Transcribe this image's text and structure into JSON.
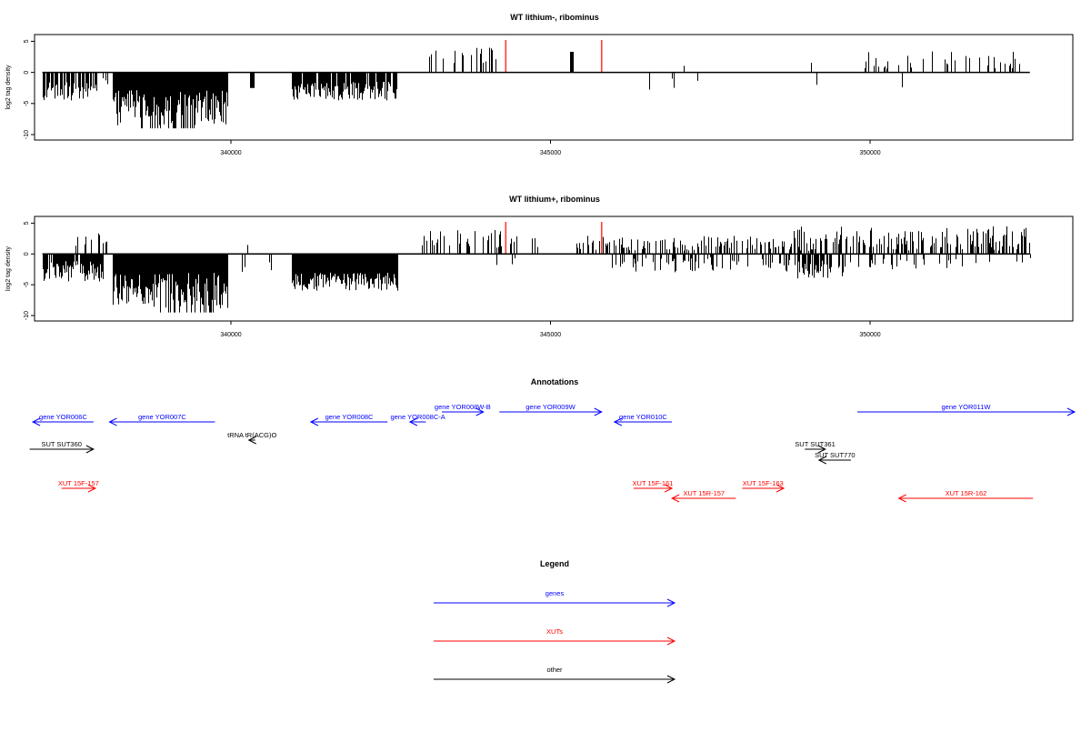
{
  "colors": {
    "genes": "#0000ff",
    "xuts": "#ff0000",
    "other": "#000000",
    "highlight": "#ff3b30",
    "bars": "#000000"
  },
  "axis": {
    "xlim": [
      336800,
      352600
    ],
    "ylim": [
      -10,
      5.5
    ],
    "xticks": [
      340000,
      345000,
      350000
    ],
    "xtick_labels": [
      "340000",
      "345000",
      "350000"
    ],
    "yticks": [
      5,
      0,
      -5,
      -10
    ],
    "ytick_labels": [
      "5",
      "0",
      "-5",
      "-10"
    ],
    "ylabel": "log2 tag density"
  },
  "chart_data": [
    {
      "type": "bar",
      "title": "WT lithium-, ribominus",
      "ylabel": "log2 tag density",
      "xlim": [
        336800,
        352600
      ],
      "ylim": [
        -10,
        5.5
      ],
      "grid": false,
      "highlight_positions": [
        344300,
        345800
      ],
      "highlight_value": 5.2,
      "regions": [
        {
          "from": 337050,
          "to": 337900,
          "density": 0.7,
          "min": -4.5,
          "max": -1.5,
          "sign": -1
        },
        {
          "from": 337900,
          "to": 338100,
          "density": 0.15,
          "min": -2,
          "max": -0.5,
          "sign": -1
        },
        {
          "from": 338150,
          "to": 339950,
          "density": 1.0,
          "min": -8.5,
          "max": -2.5,
          "sign": -1,
          "peak_at": 339000,
          "peak": -9
        },
        {
          "from": 340300,
          "to": 340350,
          "density": 1,
          "min": -2.5,
          "max": -2.5,
          "sign": -1
        },
        {
          "from": 340950,
          "to": 342600,
          "density": 0.9,
          "min": -4.5,
          "max": -1.5,
          "sign": -1
        },
        {
          "from": 342900,
          "to": 344500,
          "density": 0.12,
          "min": 1.5,
          "max": 4,
          "sign": 1
        },
        {
          "from": 345300,
          "to": 345350,
          "density": 1,
          "min": 3.3,
          "max": 3.3,
          "sign": 1
        },
        {
          "from": 346300,
          "to": 347300,
          "density": 0.06,
          "min": -3,
          "max": -1,
          "sign": -1
        },
        {
          "from": 346800,
          "to": 347200,
          "density": 0.04,
          "min": 0.5,
          "max": 1.5,
          "sign": 1
        },
        {
          "from": 348300,
          "to": 349200,
          "density": 0.05,
          "min": 1.5,
          "max": 3,
          "sign": 1
        },
        {
          "from": 348900,
          "to": 349200,
          "density": 0.06,
          "min": -3.5,
          "max": -1.5,
          "sign": -1
        },
        {
          "from": 349800,
          "to": 352500,
          "density": 0.2,
          "min": 0.5,
          "max": 3.5,
          "sign": 1
        },
        {
          "from": 350500,
          "to": 350600,
          "density": 0.2,
          "min": -4,
          "max": -2,
          "sign": -1
        }
      ]
    },
    {
      "type": "bar",
      "title": "WT lithium+, ribominus",
      "ylabel": "log2 tag density",
      "xlim": [
        336800,
        352600
      ],
      "ylim": [
        -10,
        5.5
      ],
      "grid": false,
      "highlight_positions": [
        344300,
        345800
      ],
      "highlight_value": 5.2,
      "regions": [
        {
          "from": 337050,
          "to": 338000,
          "density": 0.9,
          "min": -4.5,
          "max": -1,
          "sign": -1
        },
        {
          "from": 337500,
          "to": 338150,
          "density": 0.2,
          "min": 1,
          "max": 3.5,
          "sign": 1
        },
        {
          "from": 338150,
          "to": 339950,
          "density": 1.0,
          "min": -9,
          "max": -3,
          "sign": -1,
          "peak_at": 339300,
          "peak": -9.5
        },
        {
          "from": 340100,
          "to": 341000,
          "density": 0.05,
          "min": -3,
          "max": -1,
          "sign": -1
        },
        {
          "from": 340200,
          "to": 340950,
          "density": 0.04,
          "min": 1,
          "max": 2,
          "sign": 1
        },
        {
          "from": 340950,
          "to": 342600,
          "density": 1.0,
          "min": -6,
          "max": -3,
          "sign": -1
        },
        {
          "from": 342900,
          "to": 344800,
          "density": 0.35,
          "min": 1,
          "max": 4,
          "sign": 1
        },
        {
          "from": 344100,
          "to": 344500,
          "density": 0.06,
          "min": -2,
          "max": -0.5,
          "sign": -1
        },
        {
          "from": 345400,
          "to": 348800,
          "density": 0.4,
          "min": 0.5,
          "max": 3,
          "sign": 1
        },
        {
          "from": 345900,
          "to": 348800,
          "density": 0.25,
          "min": -3,
          "max": -0.5,
          "sign": -1
        },
        {
          "from": 348800,
          "to": 349600,
          "density": 0.7,
          "min": -4,
          "max": -1,
          "sign": -1
        },
        {
          "from": 348800,
          "to": 352500,
          "density": 0.55,
          "min": 0.5,
          "max": 4.5,
          "sign": 1
        },
        {
          "from": 349600,
          "to": 352500,
          "density": 0.15,
          "min": -2.5,
          "max": -0.5,
          "sign": -1
        }
      ]
    }
  ],
  "annotations": {
    "title": "Annotations",
    "items": [
      {
        "label": "gene YOR006C",
        "kind": "genes",
        "from": 336900,
        "to": 337850,
        "row": 1,
        "dir": "left"
      },
      {
        "label": "gene YOR007C",
        "kind": "genes",
        "from": 338100,
        "to": 339750,
        "row": 1,
        "dir": "left"
      },
      {
        "label": "tRNA tR(ACG)O",
        "kind": "other",
        "from": 340280,
        "to": 340380,
        "row": 2,
        "dir": "left"
      },
      {
        "label": "gene YOR008C",
        "kind": "genes",
        "from": 341250,
        "to": 342450,
        "row": 1,
        "dir": "left"
      },
      {
        "label": "gene YOR008C-A",
        "kind": "genes",
        "from": 342800,
        "to": 343050,
        "row": 1,
        "dir": "left"
      },
      {
        "label": "gene YOR008W-B",
        "kind": "genes",
        "from": 343300,
        "to": 343950,
        "row": 0,
        "dir": "right"
      },
      {
        "label": "gene YOR009W",
        "kind": "genes",
        "from": 344200,
        "to": 345800,
        "row": 0,
        "dir": "right"
      },
      {
        "label": "gene YOR010C",
        "kind": "genes",
        "from": 346000,
        "to": 346900,
        "row": 1,
        "dir": "left"
      },
      {
        "label": "gene YOR011W",
        "kind": "genes",
        "from": 349800,
        "to": 353600,
        "row": 0,
        "dir": "right"
      },
      {
        "label": "SUT SUT360",
        "kind": "other",
        "from": 336850,
        "to": 337850,
        "row": 3,
        "dir": "right"
      },
      {
        "label": "SUT SUT361",
        "kind": "other",
        "from": 348980,
        "to": 349300,
        "row": 3,
        "dir": "right"
      },
      {
        "label": "SUT SUT770",
        "kind": "other",
        "from": 349200,
        "to": 349700,
        "row": 4,
        "dir": "left"
      },
      {
        "label": "XUT 15F-157",
        "kind": "xuts",
        "from": 337350,
        "to": 337880,
        "row": 5,
        "dir": "right"
      },
      {
        "label": "XUT 15F-161",
        "kind": "xuts",
        "from": 346300,
        "to": 346900,
        "row": 5,
        "dir": "right"
      },
      {
        "label": "XUT 15R-157",
        "kind": "xuts",
        "from": 346900,
        "to": 347900,
        "row": 6,
        "dir": "left"
      },
      {
        "label": "XUT 15F-163",
        "kind": "xuts",
        "from": 348000,
        "to": 348650,
        "row": 5,
        "dir": "right"
      },
      {
        "label": "XUT 15R-162",
        "kind": "xuts",
        "from": 350450,
        "to": 352550,
        "row": 6,
        "dir": "left"
      }
    ]
  },
  "legend": {
    "title": "Legend",
    "items": [
      {
        "label": "genes",
        "kind": "genes"
      },
      {
        "label": "XUTs",
        "kind": "xuts"
      },
      {
        "label": "other",
        "kind": "other"
      }
    ]
  }
}
